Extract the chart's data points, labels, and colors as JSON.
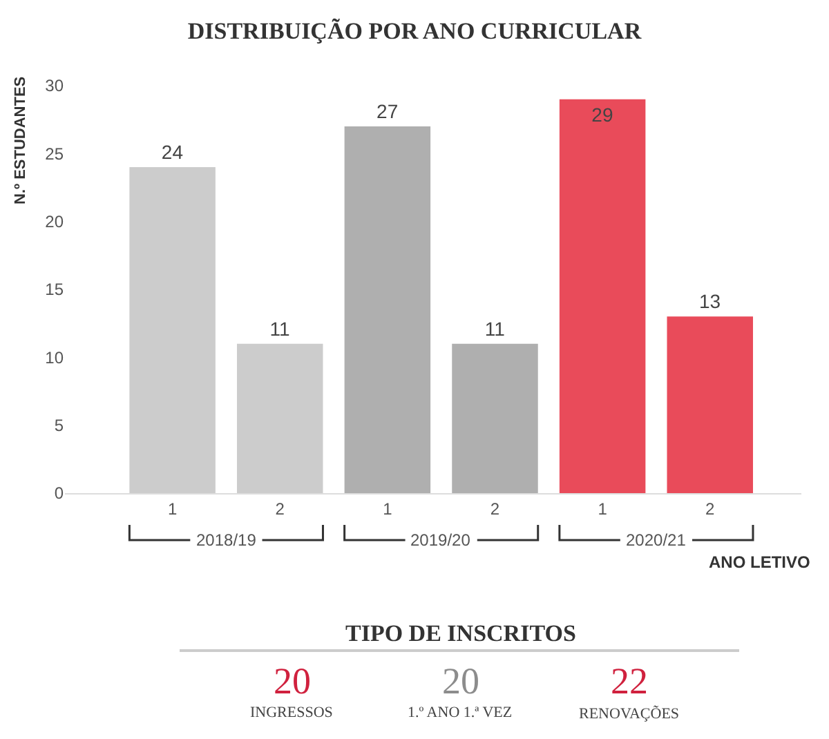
{
  "chart_data": [
    {
      "type": "bar",
      "title": "DISTRIBUIÇÃO POR ANO CURRICULAR",
      "ylabel": "N.º ESTUDANTES",
      "xlabel": "ANO LETIVO",
      "categories": [
        "1",
        "2",
        "1",
        "2",
        "1",
        "2"
      ],
      "series": [
        {
          "name": "2018/19",
          "color": "#cccccc",
          "values": [
            24,
            11,
            null,
            null,
            null,
            null
          ]
        },
        {
          "name": "2019/20",
          "color": "#afafaf",
          "values": [
            null,
            null,
            27,
            11,
            null,
            null
          ]
        },
        {
          "name": "2020/21",
          "color": "#e94b5a",
          "values": [
            null,
            null,
            null,
            null,
            29,
            13
          ]
        }
      ],
      "ylim": [
        0,
        30
      ],
      "yticks": [
        0,
        5,
        10,
        15,
        20,
        25,
        30
      ],
      "data_labels": true
    },
    {
      "type": "other",
      "title": "TIPO DE INSCRITOS",
      "categories": [
        "INGRESSOS",
        "1.º ANO 1.ª VEZ",
        "RENOVAÇÕES"
      ],
      "values": [
        20,
        20,
        22
      ],
      "colors": [
        "#d0213e",
        "#8c8c8c",
        "#d0213e"
      ],
      "data_labels": true
    }
  ]
}
